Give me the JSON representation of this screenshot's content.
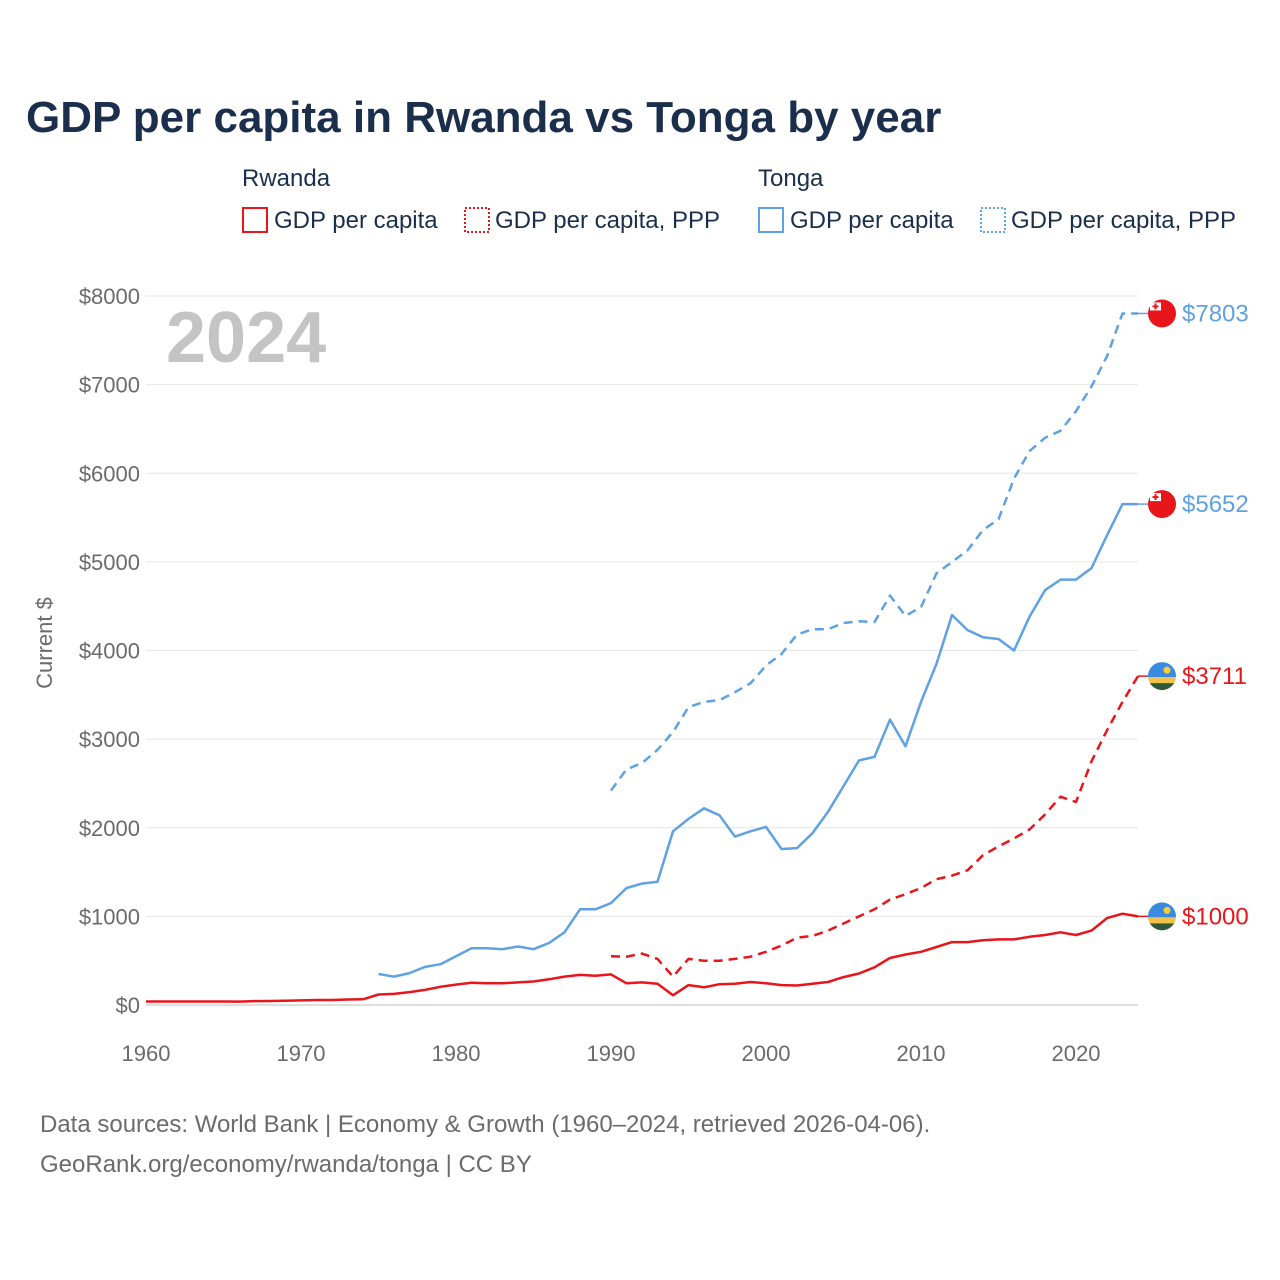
{
  "title": "GDP per capita in Rwanda vs Tonga by year",
  "watermark_year": "2024",
  "legend": {
    "groups": [
      {
        "name": "Rwanda",
        "items": [
          "GDP per capita",
          "GDP per capita, PPP"
        ]
      },
      {
        "name": "Tonga",
        "items": [
          "GDP per capita",
          "GDP per capita, PPP"
        ]
      }
    ]
  },
  "colors": {
    "rwanda": "#e8151b",
    "tonga": "#5fa2e3",
    "grid": "#e6e6e6",
    "axis": "#6b6b6b"
  },
  "end_labels": [
    {
      "series": "tonga_ppp",
      "text": "$7803",
      "flag": "tonga-flag-icon"
    },
    {
      "series": "tonga_gdp",
      "text": "$5652",
      "flag": "tonga-flag-icon"
    },
    {
      "series": "rwanda_ppp",
      "text": "$3711",
      "flag": "rwanda-flag-icon"
    },
    {
      "series": "rwanda_gdp",
      "text": "$1000",
      "flag": "rwanda-flag-icon"
    }
  ],
  "source": {
    "line1": "Data sources: World Bank | Economy & Growth (1960–2024, retrieved 2026-04-06).",
    "line2": "GeoRank.org/economy/rwanda/tonga | CC BY"
  },
  "chart_data": {
    "type": "line",
    "title": "GDP per capita in Rwanda vs Tonga by year",
    "xlabel": "",
    "ylabel": "Current $",
    "xlim": [
      1960,
      2024
    ],
    "ylim": [
      0,
      8000
    ],
    "x_ticks": [
      1960,
      1970,
      1980,
      1990,
      2000,
      2010,
      2020
    ],
    "x_tick_labels": [
      "1960",
      "1970",
      "1980",
      "1990",
      "2000",
      "2010",
      "2020"
    ],
    "y_ticks": [
      0,
      1000,
      2000,
      3000,
      4000,
      5000,
      6000,
      7000,
      8000
    ],
    "y_tick_labels": [
      "$0",
      "$1000",
      "$2000",
      "$3000",
      "$4000",
      "$5000",
      "$6000",
      "$7000",
      "$8000"
    ],
    "grid": true,
    "series": [
      {
        "id": "rwanda_gdp",
        "name": "Rwanda GDP per capita",
        "color": "#e8151b",
        "dashed": false,
        "x": [
          1960,
          1961,
          1962,
          1963,
          1964,
          1965,
          1966,
          1967,
          1968,
          1969,
          1970,
          1971,
          1972,
          1973,
          1974,
          1975,
          1976,
          1977,
          1978,
          1979,
          1980,
          1981,
          1982,
          1983,
          1984,
          1985,
          1986,
          1987,
          1988,
          1989,
          1990,
          1991,
          1992,
          1993,
          1994,
          1995,
          1996,
          1997,
          1998,
          1999,
          2000,
          2001,
          2002,
          2003,
          2004,
          2005,
          2006,
          2007,
          2008,
          2009,
          2010,
          2011,
          2012,
          2013,
          2014,
          2015,
          2016,
          2017,
          2018,
          2019,
          2020,
          2021,
          2022,
          2023,
          2024
        ],
        "values": [
          40,
          40,
          40,
          40,
          40,
          40,
          38,
          44,
          45,
          47,
          52,
          56,
          56,
          62,
          64,
          118,
          125,
          145,
          170,
          205,
          230,
          250,
          245,
          245,
          255,
          265,
          290,
          320,
          340,
          330,
          345,
          245,
          255,
          240,
          110,
          225,
          200,
          235,
          240,
          260,
          245,
          225,
          220,
          240,
          260,
          315,
          355,
          425,
          530,
          570,
          600,
          655,
          710,
          710,
          730,
          740,
          740,
          770,
          790,
          820,
          790,
          840,
          980,
          1030,
          1000
        ]
      },
      {
        "id": "rwanda_ppp",
        "name": "Rwanda GDP per capita, PPP",
        "color": "#e8151b",
        "dashed": true,
        "x": [
          1990,
          1991,
          1992,
          1993,
          1994,
          1995,
          1996,
          1997,
          1998,
          1999,
          2000,
          2001,
          2002,
          2003,
          2004,
          2005,
          2006,
          2007,
          2008,
          2009,
          2010,
          2011,
          2012,
          2013,
          2014,
          2015,
          2016,
          2017,
          2018,
          2019,
          2020,
          2021,
          2022,
          2023,
          2024
        ],
        "values": [
          550,
          545,
          580,
          520,
          320,
          520,
          500,
          500,
          520,
          545,
          600,
          670,
          760,
          780,
          840,
          920,
          1000,
          1080,
          1190,
          1250,
          1320,
          1420,
          1460,
          1520,
          1690,
          1790,
          1880,
          1980,
          2150,
          2350,
          2290,
          2750,
          3100,
          3420,
          3711
        ]
      },
      {
        "id": "tonga_gdp",
        "name": "Tonga GDP per capita",
        "color": "#5fa2e3",
        "dashed": false,
        "x": [
          1975,
          1976,
          1977,
          1978,
          1979,
          1980,
          1981,
          1982,
          1983,
          1984,
          1985,
          1986,
          1987,
          1988,
          1989,
          1990,
          1991,
          1992,
          1993,
          1994,
          1995,
          1996,
          1997,
          1998,
          1999,
          2000,
          2001,
          2002,
          2003,
          2004,
          2005,
          2006,
          2007,
          2008,
          2009,
          2010,
          2011,
          2012,
          2013,
          2014,
          2015,
          2016,
          2017,
          2018,
          2019,
          2020,
          2021,
          2022,
          2023,
          2024
        ],
        "values": [
          350,
          320,
          360,
          430,
          460,
          550,
          640,
          640,
          630,
          660,
          630,
          700,
          820,
          1080,
          1080,
          1150,
          1320,
          1370,
          1390,
          1960,
          2100,
          2220,
          2140,
          1900,
          1960,
          2010,
          1760,
          1770,
          1940,
          2180,
          2470,
          2760,
          2800,
          3220,
          2920,
          3420,
          3850,
          4400,
          4230,
          4150,
          4130,
          4000,
          4380,
          4680,
          4800,
          4800,
          4930,
          5300,
          5652,
          5652
        ]
      },
      {
        "id": "tonga_ppp",
        "name": "Tonga GDP per capita, PPP",
        "color": "#5fa2e3",
        "dashed": true,
        "x": [
          1990,
          1991,
          1992,
          1993,
          1994,
          1995,
          1996,
          1997,
          1998,
          1999,
          2000,
          2001,
          2002,
          2003,
          2004,
          2005,
          2006,
          2007,
          2008,
          2009,
          2010,
          2011,
          2012,
          2013,
          2014,
          2015,
          2016,
          2017,
          2018,
          2019,
          2020,
          2021,
          2022,
          2023,
          2024
        ],
        "values": [
          2420,
          2660,
          2730,
          2880,
          3080,
          3360,
          3420,
          3440,
          3530,
          3630,
          3830,
          3960,
          4180,
          4240,
          4240,
          4310,
          4330,
          4320,
          4620,
          4390,
          4490,
          4870,
          5000,
          5130,
          5360,
          5480,
          5940,
          6250,
          6400,
          6480,
          6700,
          6980,
          7320,
          7803,
          7803
        ]
      }
    ]
  }
}
